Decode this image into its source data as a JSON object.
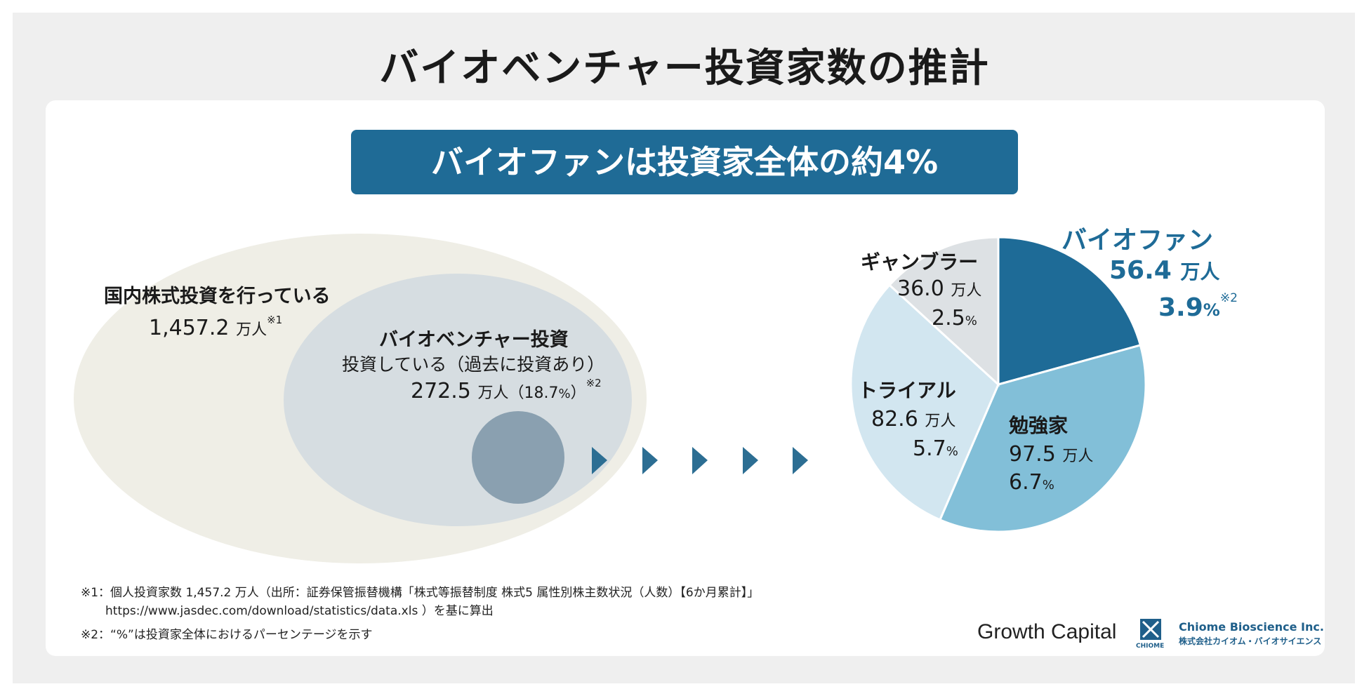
{
  "title": "バイオベンチャー投資家数の推計",
  "banner": "バイオファンは投資家全体の約4%",
  "venn": {
    "outer": {
      "label": "国内株式投資を行っている",
      "value": "1,457.2",
      "unit": "万人",
      "note": "※1"
    },
    "inner": {
      "label": "バイオベンチャー投資",
      "sub": "投資している（過去に投資あり）",
      "value": "272.5",
      "unit": "万人",
      "pct_open": "（18.7",
      "pct_sign": "%",
      "pct_close": "）",
      "note": "※2"
    }
  },
  "chart_data": {
    "type": "pie",
    "unit": "万人",
    "slices": [
      {
        "label": "バイオファン",
        "value": 56.4,
        "percent": 3.9,
        "color": "#1e6b97"
      },
      {
        "label": "勉強家",
        "value": 97.5,
        "percent": 6.7,
        "color": "#82bfd8"
      },
      {
        "label": "トライアル",
        "value": 82.6,
        "percent": 5.7,
        "color": "#d2e6f0"
      },
      {
        "label": "ギャンブラー",
        "value": 36.0,
        "percent": 2.5,
        "color": "#dde1e4"
      }
    ]
  },
  "pie_labels": {
    "biofan": {
      "name": "バイオファン",
      "value": "56.4",
      "unit": "万人",
      "pct": "3.9",
      "pct_sign": "%",
      "note": "※2"
    },
    "benkyo": {
      "name": "勉強家",
      "value": "97.5",
      "unit": "万人",
      "pct": "6.7",
      "pct_sign": "%"
    },
    "trial": {
      "name": "トライアル",
      "value": "82.6",
      "unit": "万人",
      "pct": "5.7",
      "pct_sign": "%"
    },
    "gambler": {
      "name": "ギャンブラー",
      "value": "36.0",
      "unit": "万人",
      "pct": "2.5",
      "pct_sign": "%"
    }
  },
  "footnotes": {
    "note1_line1": "※1：個人投資家数 1,457.2 万人（出所：証券保管振替機構「株式等振替制度 株式5 属性別株主数状況（人数）【6か月累計】」",
    "note1_line2": "https://www.jasdec.com/download/statistics/data.xls ）を基に算出",
    "note2": "※2：“%”は投資家全体におけるパーセンテージを示す"
  },
  "logos": {
    "growth_capital": "Growth Capital",
    "chiome_small": "CHIOME",
    "chiome_name": "Chiome Bioscience Inc.",
    "chiome_jp": "株式会社カイオム・バイオサイエンス"
  },
  "colors": {
    "accent": "#1f6b96",
    "outer_ellipse": "#efeee6",
    "inner_ellipse": "#d6dde1",
    "small_circle": "#8aa0b0",
    "arrow": "#2c6e93",
    "text_blue": "#1e6b97"
  }
}
